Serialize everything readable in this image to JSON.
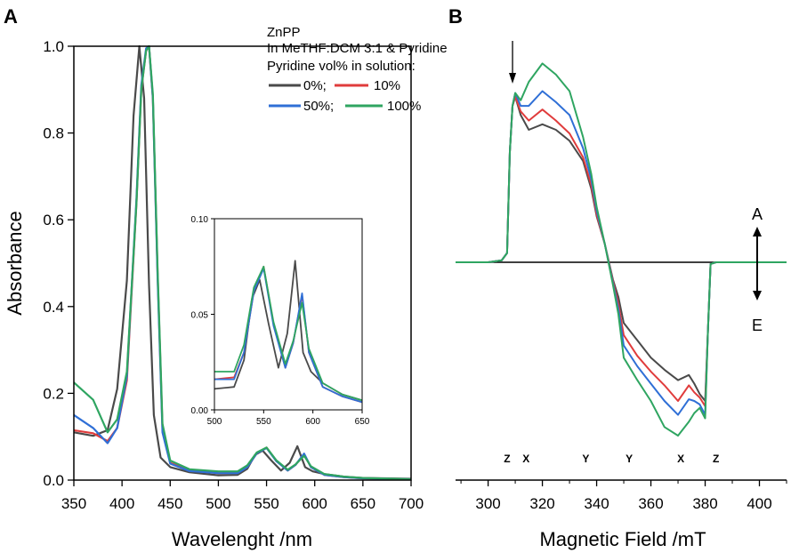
{
  "colors": {
    "black": "#4a4a4a",
    "red": "#e03c3c",
    "blue": "#2f6fd6",
    "green": "#2fa561",
    "axis": "#000000"
  },
  "panels": {
    "a_label": "A",
    "b_label": "B"
  },
  "legend": {
    "line1": "ZnPP",
    "line2": "In MeTHF:DCM 3:1 & Pyridine",
    "line3": "Pyridine vol% in solution:",
    "entries": [
      "0%;",
      "10%",
      "50%;",
      "100%"
    ]
  },
  "chart_data": [
    {
      "type": "line",
      "title": "",
      "xlabel": "Wavelenght /nm",
      "ylabel": "Absorbance",
      "xlim": [
        350,
        700
      ],
      "ylim": [
        0,
        1.0
      ],
      "xticks": [
        350,
        400,
        450,
        500,
        550,
        600,
        650,
        700
      ],
      "yticks": [
        "0.0",
        "0.2",
        "0.4",
        "0.6",
        "0.8",
        "1.0"
      ],
      "legend_position": "top-right",
      "series": [
        {
          "name": "0%",
          "color": "black",
          "x": [
            350,
            370,
            385,
            395,
            405,
            412,
            418,
            423,
            428,
            433,
            440,
            450,
            470,
            500,
            520,
            530,
            538,
            546,
            555,
            565,
            574,
            582,
            590,
            598,
            610,
            630,
            650,
            700
          ],
          "y": [
            0.11,
            0.102,
            0.115,
            0.21,
            0.46,
            0.84,
            1.0,
            0.88,
            0.45,
            0.15,
            0.052,
            0.03,
            0.018,
            0.011,
            0.012,
            0.026,
            0.058,
            0.068,
            0.045,
            0.022,
            0.04,
            0.078,
            0.03,
            0.02,
            0.014,
            0.008,
            0.005,
            0.003
          ]
        },
        {
          "name": "10%",
          "color": "red",
          "x": [
            350,
            370,
            385,
            395,
            405,
            415,
            420,
            425,
            428,
            432,
            437,
            442,
            450,
            470,
            500,
            520,
            530,
            540,
            550,
            560,
            572,
            580,
            589,
            596,
            610,
            630,
            650,
            700
          ],
          "y": [
            0.115,
            0.108,
            0.09,
            0.12,
            0.23,
            0.64,
            0.9,
            0.99,
            1.0,
            0.88,
            0.47,
            0.12,
            0.04,
            0.022,
            0.016,
            0.017,
            0.03,
            0.062,
            0.075,
            0.045,
            0.022,
            0.035,
            0.06,
            0.03,
            0.012,
            0.007,
            0.004,
            0.002
          ]
        },
        {
          "name": "50%",
          "color": "blue",
          "x": [
            350,
            370,
            385,
            395,
            405,
            415,
            420,
            425,
            428,
            432,
            437,
            442,
            450,
            470,
            500,
            520,
            530,
            540,
            550,
            560,
            572,
            580,
            589,
            596,
            610,
            630,
            650,
            700
          ],
          "y": [
            0.15,
            0.12,
            0.085,
            0.12,
            0.24,
            0.65,
            0.91,
            0.995,
            1.0,
            0.88,
            0.46,
            0.11,
            0.038,
            0.021,
            0.016,
            0.016,
            0.03,
            0.062,
            0.074,
            0.044,
            0.022,
            0.035,
            0.061,
            0.03,
            0.012,
            0.007,
            0.004,
            0.002
          ]
        },
        {
          "name": "100%",
          "color": "green",
          "x": [
            350,
            370,
            385,
            395,
            405,
            415,
            420,
            425,
            428,
            432,
            437,
            442,
            450,
            470,
            500,
            520,
            530,
            540,
            550,
            560,
            572,
            580,
            589,
            596,
            610,
            630,
            650,
            700
          ],
          "y": [
            0.225,
            0.185,
            0.11,
            0.14,
            0.25,
            0.64,
            0.9,
            0.99,
            1.0,
            0.89,
            0.48,
            0.13,
            0.045,
            0.025,
            0.02,
            0.02,
            0.034,
            0.064,
            0.075,
            0.046,
            0.024,
            0.036,
            0.056,
            0.032,
            0.014,
            0.008,
            0.005,
            0.002
          ]
        }
      ],
      "inset": {
        "xlim": [
          500,
          650
        ],
        "ylim": [
          0,
          0.1
        ],
        "xticks": [
          500,
          550,
          600,
          650
        ],
        "yticks": [
          "0.00",
          "0.05",
          "0.10"
        ]
      }
    },
    {
      "type": "line",
      "title": "",
      "xlabel": "Magnetic Field /mT",
      "ylabel": "",
      "xlim": [
        288,
        410
      ],
      "ylim": [
        -1.0,
        1.22
      ],
      "xticks": [
        300,
        320,
        340,
        360,
        380,
        400
      ],
      "grid": false,
      "annotations": {
        "up": "A",
        "down": "E",
        "canonical": [
          {
            "label": "Z",
            "x": 307
          },
          {
            "label": "X",
            "x": 314
          },
          {
            "label": "Y",
            "x": 336
          },
          {
            "label": "Y",
            "x": 352
          },
          {
            "label": "X",
            "x": 371
          },
          {
            "label": "Z",
            "x": 384
          }
        ],
        "arrow_x": 309
      },
      "series": [
        {
          "name": "0%",
          "color": "black",
          "x": [
            288,
            300,
            305,
            307,
            308,
            309,
            310,
            312,
            315,
            320,
            325,
            330,
            335,
            338,
            340,
            343,
            346,
            348,
            350,
            355,
            360,
            365,
            370,
            374,
            376,
            378,
            380,
            381,
            382,
            384,
            390,
            400,
            410
          ],
          "y": [
            0,
            0,
            0.01,
            0.05,
            0.6,
            0.85,
            0.9,
            0.8,
            0.72,
            0.75,
            0.72,
            0.66,
            0.55,
            0.4,
            0.25,
            0.1,
            -0.1,
            -0.2,
            -0.35,
            -0.45,
            -0.55,
            -0.62,
            -0.68,
            -0.65,
            -0.7,
            -0.76,
            -0.8,
            -0.4,
            -0.01,
            0,
            0,
            0,
            0
          ]
        },
        {
          "name": "10%",
          "color": "red",
          "x": [
            288,
            300,
            305,
            307,
            308,
            309,
            310,
            312,
            315,
            320,
            325,
            330,
            335,
            338,
            340,
            343,
            346,
            348,
            350,
            355,
            360,
            365,
            370,
            374,
            376,
            378,
            380,
            381,
            382,
            384,
            390,
            400,
            410
          ],
          "y": [
            0,
            0,
            0.01,
            0.05,
            0.6,
            0.85,
            0.9,
            0.82,
            0.77,
            0.83,
            0.77,
            0.7,
            0.57,
            0.42,
            0.26,
            0.1,
            -0.11,
            -0.24,
            -0.42,
            -0.54,
            -0.63,
            -0.71,
            -0.8,
            -0.71,
            -0.75,
            -0.78,
            -0.83,
            -0.4,
            -0.01,
            0,
            0,
            0,
            0
          ]
        },
        {
          "name": "50%",
          "color": "blue",
          "x": [
            288,
            300,
            305,
            307,
            308,
            309,
            310,
            312,
            315,
            320,
            325,
            330,
            335,
            338,
            340,
            343,
            346,
            348,
            350,
            355,
            360,
            365,
            370,
            374,
            376,
            378,
            380,
            381,
            382,
            384,
            390,
            400,
            410
          ],
          "y": [
            0,
            0,
            0.01,
            0.05,
            0.6,
            0.85,
            0.92,
            0.85,
            0.85,
            0.93,
            0.87,
            0.8,
            0.62,
            0.45,
            0.28,
            0.1,
            -0.12,
            -0.27,
            -0.48,
            -0.6,
            -0.7,
            -0.8,
            -0.88,
            -0.79,
            -0.8,
            -0.82,
            -0.88,
            -0.4,
            -0.01,
            0,
            0,
            0,
            0
          ]
        },
        {
          "name": "100%",
          "color": "green",
          "x": [
            288,
            300,
            305,
            307,
            308,
            309,
            310,
            312,
            315,
            320,
            325,
            330,
            335,
            338,
            340,
            343,
            346,
            348,
            350,
            355,
            360,
            365,
            370,
            374,
            376,
            378,
            380,
            381,
            382,
            384,
            390,
            400,
            410
          ],
          "y": [
            0,
            0,
            0.01,
            0.05,
            0.6,
            0.85,
            0.92,
            0.88,
            0.98,
            1.08,
            1.02,
            0.93,
            0.68,
            0.48,
            0.3,
            0.1,
            -0.13,
            -0.3,
            -0.55,
            -0.68,
            -0.8,
            -0.95,
            -1.0,
            -0.92,
            -0.87,
            -0.84,
            -0.9,
            -0.4,
            -0.01,
            0,
            0,
            0,
            0
          ]
        }
      ]
    }
  ]
}
